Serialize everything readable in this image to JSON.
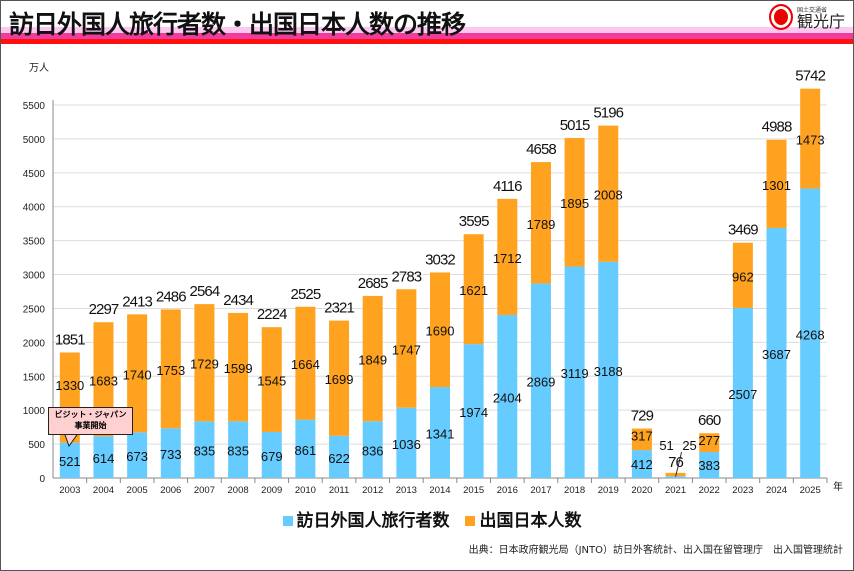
{
  "header": {
    "title": "訪日外国人旅行者数・出国日本人数の推移",
    "logo_small": "国土交通省",
    "logo_big": "観光庁"
  },
  "callout": {
    "line1": "ビジット・ジャパン",
    "line2": "事業開始"
  },
  "source": "出典：日本政府観光局（JNTO）訪日外客統計、出入国在留管理庁　出入国管理統計",
  "colors": {
    "inbound": "#66ccff",
    "outbound": "#ffa21f"
  },
  "chart_data": {
    "type": "bar",
    "stacked": true,
    "ylabel": "万人",
    "xlabel": "年",
    "ylim": [
      0,
      5500
    ],
    "yticks": [
      0,
      500,
      1000,
      1500,
      2000,
      2500,
      3000,
      3500,
      4000,
      4500,
      5000,
      5500
    ],
    "grid": true,
    "legend_position": "bottom",
    "categories": [
      "2003",
      "2004",
      "2005",
      "2006",
      "2007",
      "2008",
      "2009",
      "2010",
      "2011",
      "2012",
      "2013",
      "2014",
      "2015",
      "2016",
      "2017",
      "2018",
      "2019",
      "2020",
      "2021",
      "2022",
      "2023",
      "2024",
      "2025"
    ],
    "series": [
      {
        "name": "訪日外国人旅行者数",
        "values": [
          521,
          614,
          673,
          733,
          835,
          835,
          679,
          861,
          622,
          836,
          1036,
          1341,
          1974,
          2404,
          2869,
          3119,
          3188,
          412,
          25,
          383,
          2507,
          3687,
          4268
        ]
      },
      {
        "name": "出国日本人数",
        "values": [
          1330,
          1683,
          1740,
          1753,
          1729,
          1599,
          1545,
          1664,
          1699,
          1849,
          1747,
          1690,
          1621,
          1712,
          1789,
          1895,
          2008,
          317,
          51,
          277,
          962,
          1301,
          1473
        ]
      }
    ],
    "totals": [
      1851,
      2297,
      2413,
      2486,
      2564,
      2434,
      2224,
      2525,
      2321,
      2685,
      2783,
      3032,
      3595,
      4116,
      4658,
      5015,
      5196,
      729,
      76,
      660,
      3469,
      4988,
      5742
    ]
  }
}
